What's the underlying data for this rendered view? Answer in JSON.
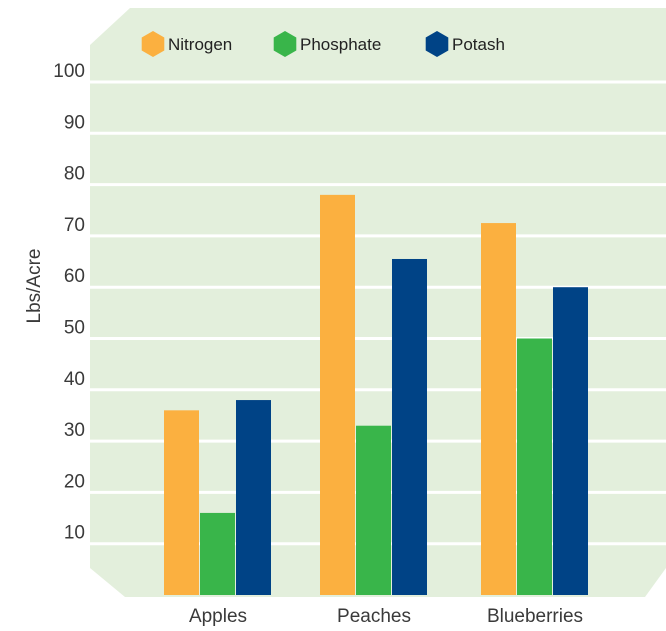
{
  "chart_data": {
    "type": "bar",
    "title": "",
    "xlabel": "",
    "ylabel": "Lbs/Acre",
    "categories": [
      "Apples",
      "Peaches",
      "Blueberries"
    ],
    "series": [
      {
        "name": "Nitrogen",
        "color": "#fbb040",
        "values": [
          36,
          78,
          72.5
        ]
      },
      {
        "name": "Phosphate",
        "color": "#39b54a",
        "values": [
          16,
          33,
          50
        ]
      },
      {
        "name": "Potash",
        "color": "#004386",
        "values": [
          38,
          65.5,
          60
        ]
      }
    ],
    "yticks": [
      "10",
      "20",
      "30",
      "40",
      "50",
      "60",
      "70",
      "80",
      "90",
      "100"
    ],
    "ylim": [
      0,
      100
    ],
    "grid": true,
    "legend": "top",
    "background_color": "#e3efdc",
    "gridline_color": "#ffffff"
  }
}
